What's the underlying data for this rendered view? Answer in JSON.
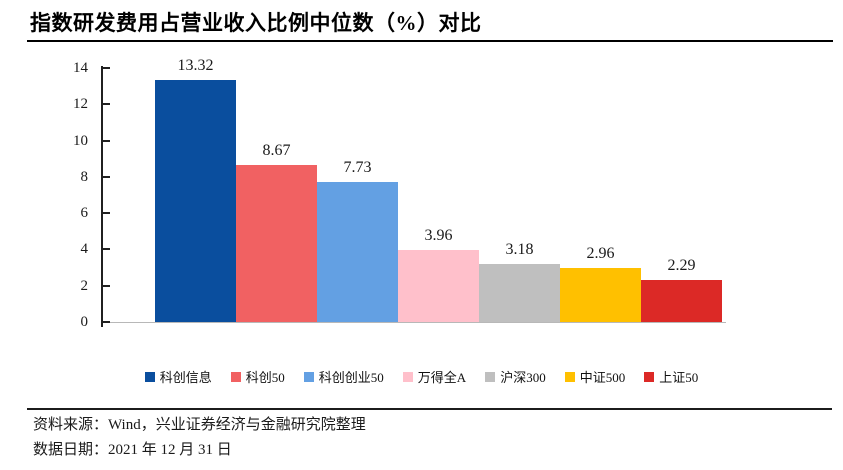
{
  "page": {
    "title": "指数研发费用占营业收入比例中位数（%）对比"
  },
  "chart_data": {
    "type": "bar",
    "title": "指数研发费用占营业收入比例中位数（%）对比",
    "categories": [
      "科创信息",
      "科创50",
      "科创创业50",
      "万得全A",
      "沪深300",
      "中证500",
      "上证50"
    ],
    "values": [
      13.32,
      8.67,
      7.73,
      3.96,
      3.18,
      2.96,
      2.29
    ],
    "colors": [
      "#0A4E9E",
      "#F16162",
      "#63A0E3",
      "#FFC0CB",
      "#BFBFBF",
      "#FFC000",
      "#DC2926"
    ],
    "ylim": [
      0,
      14
    ],
    "yticks": [
      0,
      2,
      4,
      6,
      8,
      10,
      12,
      14
    ],
    "grid": false,
    "legend_position": "bottom",
    "xlabel": "",
    "ylabel": ""
  },
  "footer": {
    "source": "资料来源：Wind，兴业证券经济与金融研究院整理",
    "date": "数据日期：2021 年 12 月 31 日"
  }
}
